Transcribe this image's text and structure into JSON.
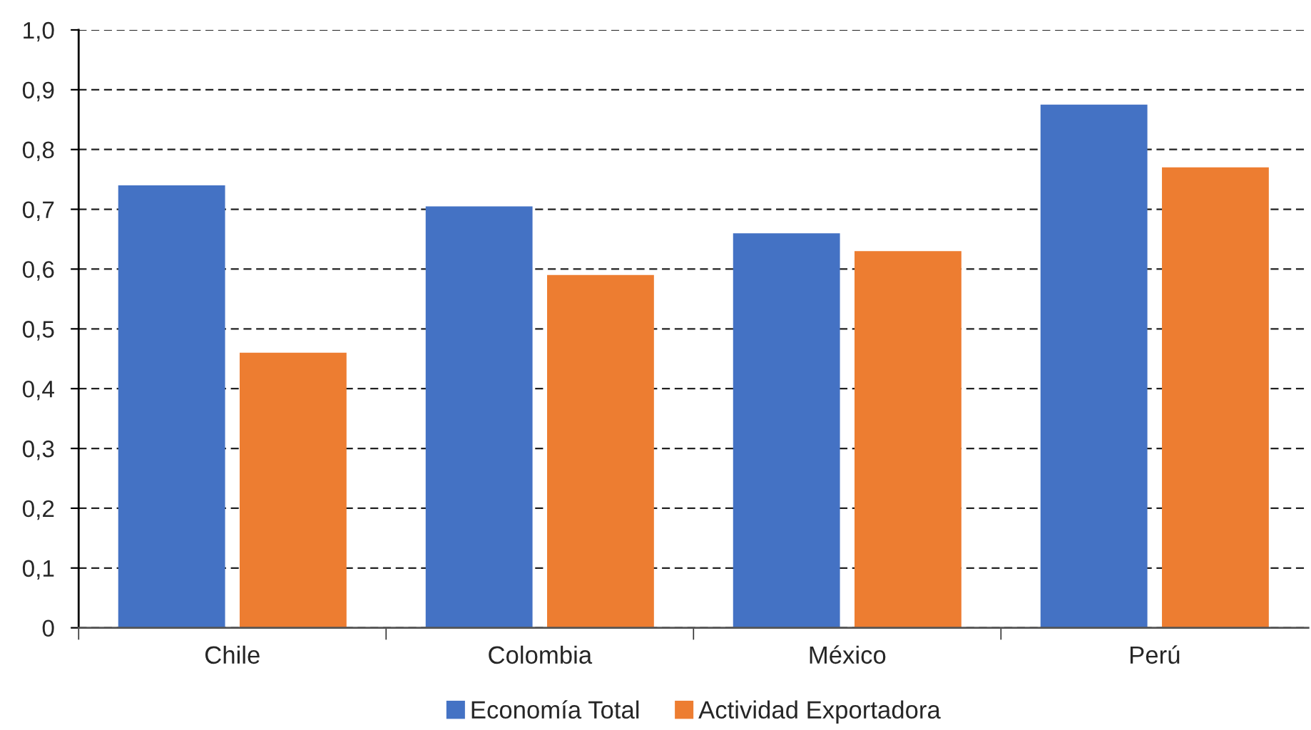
{
  "chart_data": {
    "type": "bar",
    "categories": [
      "Chile",
      "Colombia",
      "México",
      "Perú"
    ],
    "series": [
      {
        "name": "Economía Total",
        "color": "#4472c4",
        "values": [
          0.74,
          0.705,
          0.66,
          0.875
        ]
      },
      {
        "name": "Actividad Exportadora",
        "color": "#ed7d31",
        "values": [
          0.46,
          0.59,
          0.63,
          0.77
        ]
      }
    ],
    "ylim": [
      0,
      1.0
    ],
    "yticks": [
      0,
      {
        "value": 0.1,
        "label": "0,1"
      },
      {
        "value": 0.2,
        "label": "0,2"
      },
      {
        "value": 0.3,
        "label": "0,3"
      },
      {
        "value": 0.4,
        "label": "0,4"
      },
      {
        "value": 0.5,
        "label": "0,5"
      },
      {
        "value": 0.6,
        "label": "0,6"
      },
      {
        "value": 0.7,
        "label": "0,7"
      },
      {
        "value": 0.8,
        "label": "0,8"
      },
      {
        "value": 0.9,
        "label": "0,9"
      },
      {
        "value": 1.0,
        "label": "1,0"
      }
    ],
    "grid": "y",
    "legend": "bottom"
  }
}
